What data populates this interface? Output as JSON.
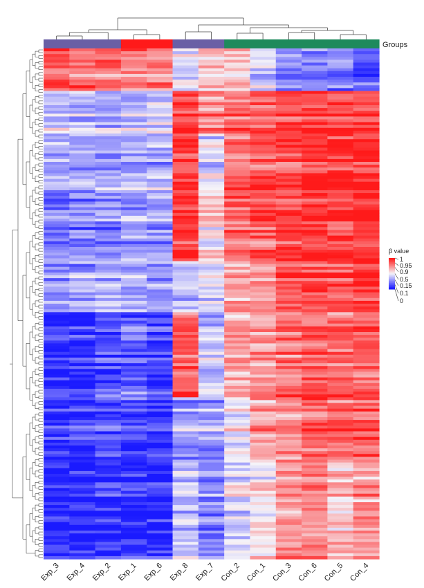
{
  "chart_data": {
    "type": "heatmap",
    "columns": [
      "Exp_3",
      "Exp_4",
      "Exp_2",
      "Exp_1",
      "Exp_6",
      "Exp_8",
      "Exp_7",
      "Con_2",
      "Con_1",
      "Con_3",
      "Con_6",
      "Con_5",
      "Con_4"
    ],
    "group_annotation": {
      "label": "Groups",
      "values": [
        "g1",
        "g1",
        "g1",
        "g2",
        "g2",
        "g1",
        "g1",
        "g3",
        "g3",
        "g3",
        "g3",
        "g3",
        "g3"
      ],
      "colors": {
        "g1": "#6a5fa5",
        "g2": "#ff1a1a",
        "g3": "#1e8a5c"
      }
    },
    "legend": {
      "title": "β value",
      "ticks": [
        "1",
        "0.95",
        "0.9",
        "0.5",
        "0.15",
        "0.1",
        "0"
      ],
      "colors": {
        "low": "#1a1aff",
        "mid": "#f5f3f8",
        "high": "#ff1a1a"
      }
    },
    "row_count": 180,
    "blocks": [
      {
        "rows": 15,
        "values": [
          0.85,
          0.82,
          0.8,
          0.78,
          0.76,
          0.45,
          0.6,
          0.62,
          0.4,
          0.25,
          0.2,
          0.22,
          0.15
        ]
      },
      {
        "rows": 15,
        "values": [
          0.45,
          0.42,
          0.4,
          0.42,
          0.45,
          0.95,
          0.75,
          0.85,
          0.88,
          0.92,
          0.95,
          0.95,
          0.96
        ]
      },
      {
        "rows": 20,
        "values": [
          0.35,
          0.33,
          0.3,
          0.36,
          0.35,
          0.9,
          0.45,
          0.8,
          0.85,
          0.9,
          0.95,
          0.93,
          0.96
        ]
      },
      {
        "rows": 25,
        "values": [
          0.2,
          0.22,
          0.25,
          0.3,
          0.28,
          0.92,
          0.55,
          0.82,
          0.84,
          0.88,
          0.93,
          0.9,
          0.95
        ]
      },
      {
        "rows": 18,
        "values": [
          0.3,
          0.32,
          0.38,
          0.36,
          0.3,
          0.4,
          0.45,
          0.7,
          0.75,
          0.85,
          0.9,
          0.88,
          0.92
        ]
      },
      {
        "rows": 30,
        "values": [
          0.06,
          0.08,
          0.12,
          0.18,
          0.1,
          0.85,
          0.4,
          0.7,
          0.72,
          0.8,
          0.85,
          0.82,
          0.85
        ]
      },
      {
        "rows": 22,
        "values": [
          0.08,
          0.1,
          0.15,
          0.12,
          0.1,
          0.3,
          0.3,
          0.5,
          0.7,
          0.78,
          0.85,
          0.82,
          0.88
        ]
      },
      {
        "rows": 35,
        "values": [
          0.04,
          0.05,
          0.07,
          0.06,
          0.05,
          0.4,
          0.25,
          0.45,
          0.55,
          0.72,
          0.75,
          0.65,
          0.72
        ]
      }
    ]
  }
}
